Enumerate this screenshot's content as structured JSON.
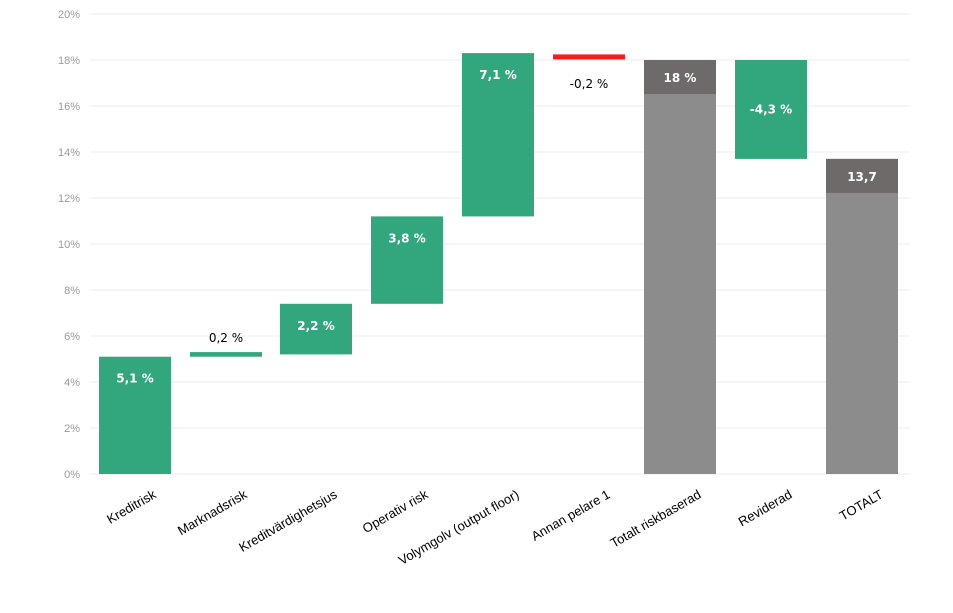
{
  "chart_data": {
    "type": "bar",
    "subtype": "waterfall",
    "title": "",
    "xlabel": "",
    "ylabel": "",
    "ylim": [
      0,
      20
    ],
    "y_ticks": [
      0,
      2,
      4,
      6,
      8,
      10,
      12,
      14,
      16,
      18,
      20
    ],
    "y_tick_labels": [
      "0%",
      "2%",
      "4%",
      "6%",
      "8%",
      "10%",
      "12%",
      "14%",
      "16%",
      "18%",
      "20%"
    ],
    "grid": true,
    "categories": [
      "Kreditrisk",
      "Marknadsrisk",
      "Kreditvärdighetsjus",
      "Operativ risk",
      "Volymgolv (output floor)",
      "Annan pelare 1",
      "Totalt riskbaserad",
      "Reviderad",
      "TOTALT"
    ],
    "bars": [
      {
        "category": "Kreditrisk",
        "kind": "increase",
        "start": 0,
        "end": 5.1,
        "label": "5,1 %"
      },
      {
        "category": "Marknadsrisk",
        "kind": "increase",
        "start": 5.1,
        "end": 5.3,
        "label": "0,2 %"
      },
      {
        "category": "Kreditvärdighetsjus",
        "kind": "increase",
        "start": 5.2,
        "end": 7.4,
        "label": "2,2 %"
      },
      {
        "category": "Operativ risk",
        "kind": "increase",
        "start": 7.4,
        "end": 11.2,
        "label": "3,8 %"
      },
      {
        "category": "Volymgolv (output floor)",
        "kind": "increase",
        "start": 11.2,
        "end": 18.3,
        "label": "7,1 %"
      },
      {
        "category": "Annan pelare 1",
        "kind": "decrease",
        "start": 18.2,
        "end": 18.0,
        "label": "-0,2 %"
      },
      {
        "category": "Totalt riskbaserad",
        "kind": "total",
        "start": 0,
        "end": 18.0,
        "label": "18 %"
      },
      {
        "category": "Reviderad",
        "kind": "decrease",
        "start": 18.0,
        "end": 13.7,
        "label": "-4,3 %"
      },
      {
        "category": "TOTALT",
        "kind": "total",
        "start": 0,
        "end": 13.7,
        "label": "13,7"
      }
    ],
    "colors": {
      "increase": "#32a67c",
      "decrease": "#ff1a1a",
      "total": "#8c8c8c",
      "total_cap": "#6e6a6a",
      "grid": "#ececec",
      "axis_text": "#9a9a9a"
    }
  }
}
